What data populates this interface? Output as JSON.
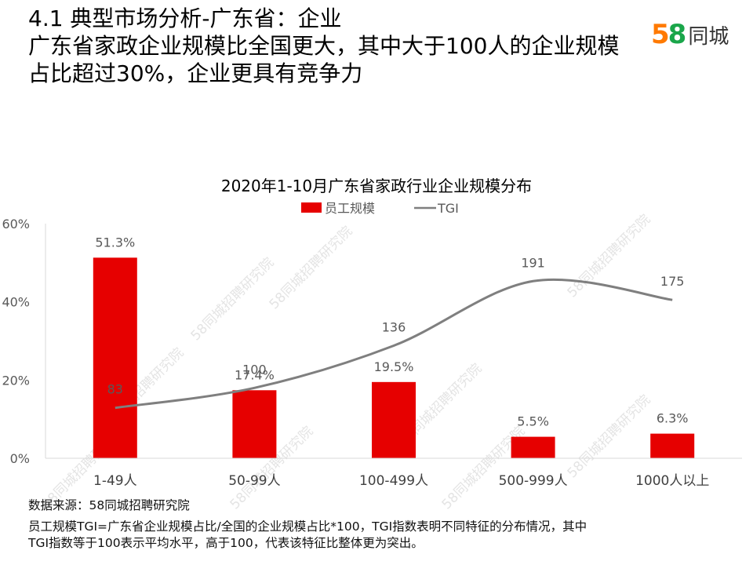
{
  "header": {
    "line1": "4.1 典型市场分析-广东省：企业",
    "line2": "广东省家政企业规模比全国更大，其中大于100人的企业规模",
    "line3": "占比超过30%，企业更具有竞争力"
  },
  "logo": {
    "digit5": "5",
    "digit8": "8",
    "text": "同城"
  },
  "watermark": "58同城招聘研究院",
  "chart_data": {
    "type": "bar",
    "title": "2020年1-10月广东省家政行业企业规模分布",
    "categories": [
      "1-49人",
      "50-99人",
      "100-499人",
      "500-999人",
      "1000人以上"
    ],
    "series": [
      {
        "name": "员工规模",
        "kind": "bar",
        "values": [
          51.3,
          17.4,
          19.5,
          5.5,
          6.3
        ],
        "labels": [
          "51.3%",
          "17.4%",
          "19.5%",
          "5.5%",
          "6.3%"
        ],
        "color": "#e60000"
      },
      {
        "name": "TGI",
        "kind": "line",
        "values": [
          83,
          100,
          136,
          191,
          175
        ],
        "labels": [
          "83",
          "100",
          "136",
          "191",
          "175"
        ],
        "color": "#7f7f7f"
      }
    ],
    "ylim": [
      0,
      60
    ],
    "yticks": [
      "0%",
      "20%",
      "40%",
      "60%"
    ],
    "legend_position": "top-center"
  },
  "notes": {
    "source": "数据来源：58同城招聘研究院",
    "line1": "员工规模TGI=广东省企业规模占比/全国的企业规模占比*100，TGI指数表明不同特征的分布情况，其中",
    "line2": "TGI指数等于100表示平均水平，高于100，代表该特征比整体更为突出。"
  }
}
